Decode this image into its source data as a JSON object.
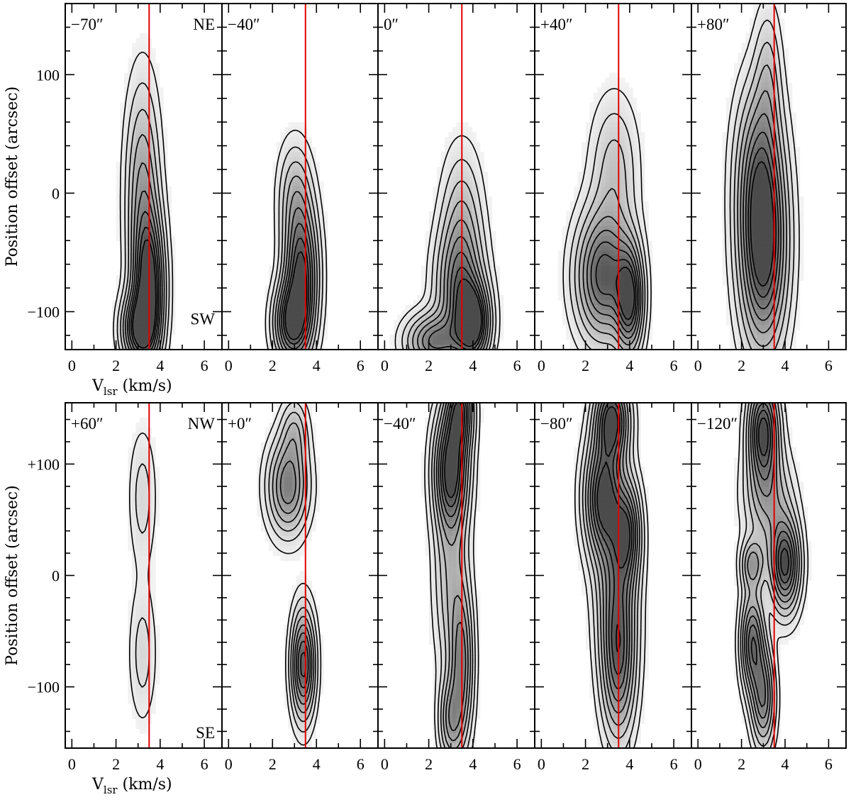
{
  "chart_data": {
    "type": "heatmap",
    "description_note": "Position-velocity diagrams; grayscale + contour emission along cuts",
    "accent_color": "#e00000",
    "reference_velocity_kms": 3.5,
    "xlim": [
      -0.3,
      6.8
    ],
    "xticks": [
      0,
      2,
      4,
      6
    ],
    "xlabel_main": "V",
    "xlabel_sub": "lsr",
    "xlabel_units": " (km/s)",
    "ylabel": "Position offset (arcsec)",
    "rows": [
      {
        "name": "top",
        "ylim": [
          -132,
          160
        ],
        "yticks": [
          100,
          0,
          -100
        ],
        "ytick_labels": [
          "100",
          "0",
          "−100"
        ],
        "corner_top": "NE",
        "corner_bottom": "SW",
        "panels": [
          {
            "label": "−70″",
            "peaks": [
              [
                3.5,
                -80,
                1.0,
                0.45,
                40
              ],
              [
                3.0,
                -115,
                0.8,
                0.5,
                20
              ],
              [
                3.2,
                0,
                0.5,
                0.5,
                60
              ]
            ]
          },
          {
            "label": "−40″",
            "peaks": [
              [
                3.3,
                -70,
                1.0,
                0.5,
                40
              ],
              [
                2.8,
                -110,
                0.8,
                0.5,
                22
              ],
              [
                3.0,
                0,
                0.3,
                0.5,
                30
              ]
            ]
          },
          {
            "label": "0″",
            "peaks": [
              [
                4.0,
                -110,
                1.0,
                0.5,
                22
              ],
              [
                3.4,
                -80,
                0.7,
                0.7,
                35
              ],
              [
                2.2,
                -125,
                0.7,
                0.8,
                15
              ],
              [
                3.5,
                -20,
                0.3,
                0.6,
                40
              ]
            ]
          },
          {
            "label": "+40″",
            "peaks": [
              [
                2.8,
                -70,
                0.9,
                0.8,
                35
              ],
              [
                4.0,
                -90,
                0.9,
                0.4,
                30
              ],
              [
                3.3,
                20,
                0.3,
                0.7,
                40
              ]
            ]
          },
          {
            "label": "+80″",
            "peaks": [
              [
                3.0,
                -50,
                1.0,
                0.7,
                55
              ],
              [
                2.8,
                20,
                0.55,
                0.7,
                50
              ],
              [
                3.2,
                100,
                0.25,
                0.4,
                40
              ]
            ]
          }
        ]
      },
      {
        "name": "bottom",
        "ylim": [
          -155,
          155
        ],
        "yticks": [
          100,
          0,
          -100
        ],
        "ytick_labels": [
          "+100",
          "0",
          "−100"
        ],
        "corner_top": "NW",
        "corner_bottom": "SE",
        "panels": [
          {
            "label": "+60″",
            "peaks": [
              [
                3.2,
                70,
                0.2,
                0.4,
                40
              ],
              [
                3.2,
                -70,
                0.2,
                0.4,
                40
              ]
            ]
          },
          {
            "label": "+0″",
            "peaks": [
              [
                2.7,
                80,
                0.7,
                0.6,
                28
              ],
              [
                3.4,
                -80,
                0.9,
                0.35,
                32
              ],
              [
                3.0,
                130,
                0.3,
                0.4,
                20
              ]
            ]
          },
          {
            "label": "−40″",
            "peaks": [
              [
                3.0,
                95,
                1.0,
                0.5,
                35
              ],
              [
                3.5,
                -80,
                0.6,
                0.35,
                45
              ],
              [
                3.0,
                -130,
                0.5,
                0.35,
                25
              ],
              [
                3.0,
                0,
                0.35,
                0.5,
                60
              ],
              [
                3.4,
                150,
                0.8,
                0.4,
                25
              ]
            ]
          },
          {
            "label": "−80″",
            "peaks": [
              [
                2.8,
                70,
                1.0,
                0.55,
                35
              ],
              [
                3.2,
                140,
                1.0,
                0.5,
                25
              ],
              [
                3.9,
                40,
                0.7,
                0.4,
                30
              ],
              [
                3.5,
                -80,
                0.7,
                0.5,
                45
              ],
              [
                3.4,
                -10,
                0.55,
                0.6,
                50
              ]
            ]
          },
          {
            "label": "−120″",
            "peaks": [
              [
                3.0,
                130,
                1.0,
                0.45,
                30
              ],
              [
                4.0,
                10,
                1.0,
                0.45,
                28
              ],
              [
                2.5,
                -60,
                0.8,
                0.35,
                30
              ],
              [
                3.0,
                -110,
                0.7,
                0.35,
                30
              ],
              [
                3.2,
                70,
                0.45,
                0.7,
                30
              ],
              [
                2.5,
                10,
                0.5,
                0.35,
                15
              ]
            ]
          }
        ]
      }
    ]
  }
}
